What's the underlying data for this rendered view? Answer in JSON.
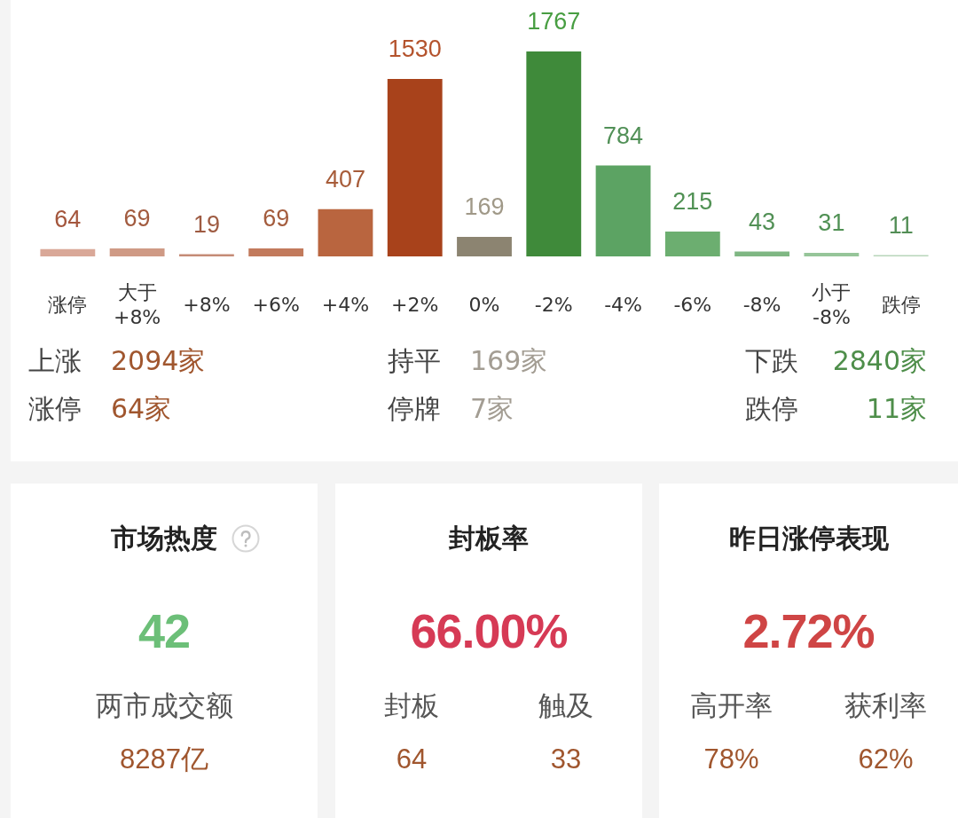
{
  "chart_data": [
    {
      "type": "bar",
      "categories": [
        "涨停",
        "大于 +8%",
        "+8%",
        "+6%",
        "+4%",
        "+2%",
        "0%",
        "-2%",
        "-4%",
        "-6%",
        "-8%",
        "小于 -8%",
        "跌停"
      ],
      "values": [
        64,
        69,
        19,
        69,
        407,
        1530,
        169,
        1767,
        784,
        215,
        43,
        31,
        11
      ],
      "colors": [
        "#d9a898",
        "#cf9a85",
        "#c58b76",
        "#c27a5c",
        "#b9653f",
        "#a8421b",
        "#8c8471",
        "#3f8a3a",
        "#5ca363",
        "#6cae70",
        "#7fb783",
        "#96c599",
        "#b8d6ba"
      ],
      "data_labels": true,
      "tick_labels": "x",
      "annotations": [
        "上涨 2094家",
        "持平 169家",
        "下跌 2840家",
        "涨停 64家",
        "停牌 7家",
        "跌停 11家"
      ]
    },
    {
      "type": "other",
      "title": "市场热度",
      "annotations": [
        "42",
        "两市成交额",
        "8287亿"
      ]
    },
    {
      "type": "other",
      "title": "封板率",
      "annotations": [
        "66.00%",
        "封板",
        "64",
        "触及",
        "33"
      ]
    },
    {
      "type": "other",
      "title": "昨日涨停表现",
      "annotations": [
        "2.72%",
        "高开率",
        "78%",
        "获利率",
        "62%"
      ]
    }
  ]
}
